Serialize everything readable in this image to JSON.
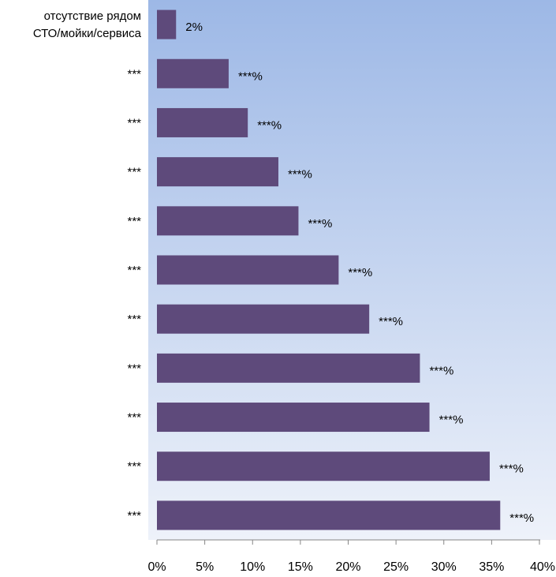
{
  "chart_data": {
    "type": "bar",
    "orientation": "horizontal",
    "title": "",
    "xlabel": "",
    "ylabel": "",
    "xlim": [
      0,
      40
    ],
    "x_ticks": [
      "0%",
      "5%",
      "10%",
      "15%",
      "20%",
      "25%",
      "30%",
      "35%",
      "40%"
    ],
    "grid": false,
    "legend": "none",
    "categories": [
      [
        "отсутствие рядом",
        "СТО/мойки/сервиса"
      ],
      [
        "***"
      ],
      [
        "***"
      ],
      [
        "***"
      ],
      [
        "***"
      ],
      [
        "***"
      ],
      [
        "***"
      ],
      [
        "***"
      ],
      [
        "***"
      ],
      [
        "***"
      ],
      [
        "***"
      ]
    ],
    "values": [
      2,
      7.5,
      9.5,
      12.7,
      14.8,
      19,
      22.2,
      27.5,
      28.5,
      34.8,
      35.9
    ],
    "data_labels": [
      "2%",
      "***%",
      "***%",
      "***%",
      "***%",
      "***%",
      "***%",
      "***%",
      "***%",
      "***%",
      "***%"
    ],
    "colors": {
      "bar": "#5e4a7b",
      "plot_bg_top": "#9db8e6",
      "plot_bg_bottom": "#eef2fa",
      "axis": "#868686"
    }
  }
}
